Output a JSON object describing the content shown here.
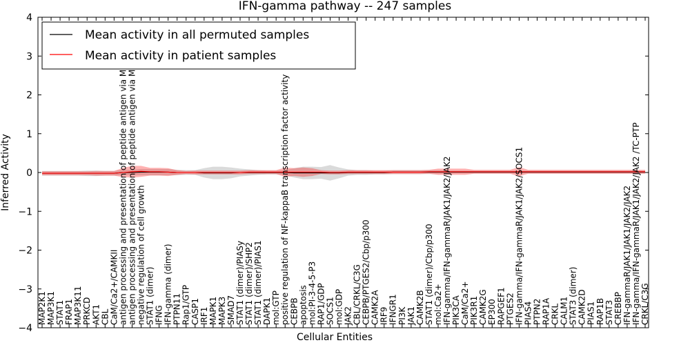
{
  "chart_data": {
    "type": "line",
    "title": "IFN-gamma pathway -- 247 samples",
    "xlabel": "Cellular Entities",
    "ylabel": "Inferred Activity",
    "ylim": [
      -4,
      4
    ],
    "yticks": [
      -4,
      -3,
      -2,
      -1,
      0,
      1,
      2,
      3,
      4
    ],
    "ytick_labels": [
      "−4",
      "−3",
      "−2",
      "−1",
      "0",
      "1",
      "2",
      "3",
      "4"
    ],
    "grid": false,
    "legend_position": "top-left",
    "categories": [
      "MAP2K1",
      "MAP3K1",
      "STAT1",
      "FRAP1",
      "MAP3K11",
      "PRKCD",
      "AKT1",
      "CBL",
      "CaM/Ca2+/CAMKII",
      "antigen processing and presentation of peptide antigen via MHC class I",
      "antigen processing and presentation of peptide antigen via MHC class II",
      "negative regulation of cell growth",
      "STAT1 (dimer)",
      "IFNG",
      "IFN-gamma (dimer)",
      "PTPN11",
      "Rap1/GTP",
      "CASP1",
      "IRF1",
      "MAPK1",
      "MAPK3",
      "SMAD7",
      "STAT1 (dimer)/PIASy",
      "STAT1 (dimer)/SHP2",
      "STAT1 (dimer)/PIAS1",
      "DAPK1",
      "mol:GTP",
      "positive regulation of NF-kappaB transcription factor activity",
      "CEBPB",
      "apoptosis",
      "mol:PI-3-4-5-P3",
      "RAP1/GDP",
      "SOCS1",
      "mol:GDP",
      "JAK2",
      "CBL/CRKL/C3G",
      "CEBPB/PTGES2/Cbp/p300",
      "CAMK2A",
      "IRF9",
      "IFNGR1",
      "PI3K",
      "JAK1",
      "CAMK2B",
      "STAT1 (dimer)/Cbp/p300",
      "mol:Ca2+",
      "IFN-gamma/IFN-gammaR/JAK1/JAK2/JAK2",
      "PIK3CA",
      "CaM/Ca2+",
      "PIK3R1",
      "CAMK2G",
      "EP300",
      "RAPGEF1",
      "PTGES2",
      "IFN-gamma/IFN-gammaR/JAK1/JAK2/SOCS1",
      "PIAS4",
      "PTPN2",
      "RAP1A",
      "CRKL",
      "CALM1",
      "STAT3 (dimer)",
      "CAMK2D",
      "PIAS1",
      "RAP1B",
      "STAT3",
      "CREBBP",
      "IFN-gammaR/JAK1/JAK1/JAK2/JAK2",
      "IFN-gamma/IFN-gammaR/JAK1/JAK2/JAK2  /TC-PTP",
      "CRKL/C3G"
    ],
    "series": [
      {
        "name": "Mean activity in all permuted samples",
        "color": "#000000",
        "values": [
          -0.02,
          -0.02,
          -0.02,
          -0.02,
          -0.02,
          -0.02,
          -0.02,
          -0.02,
          -0.02,
          0.0,
          0.0,
          0.01,
          0.01,
          0.01,
          0.01,
          0.0,
          0.0,
          0.0,
          -0.01,
          -0.01,
          -0.01,
          -0.01,
          0.0,
          0.0,
          0.0,
          0.0,
          0.0,
          0.0,
          -0.01,
          -0.01,
          -0.01,
          -0.01,
          -0.01,
          -0.01,
          0.0,
          0.0,
          0.0,
          0.0,
          0.0,
          0.01,
          0.01,
          0.01,
          0.01,
          0.01,
          0.01,
          0.01,
          0.01,
          0.01,
          0.01,
          0.01,
          0.01,
          0.01,
          0.01,
          0.01,
          0.01,
          0.01,
          0.01,
          0.01,
          0.01,
          0.01,
          0.01,
          0.01,
          0.01,
          0.01,
          0.01,
          0.01,
          0.01,
          0.01
        ],
        "band": [
          0.06,
          0.06,
          0.06,
          0.06,
          0.06,
          0.07,
          0.07,
          0.06,
          0.06,
          0.07,
          0.07,
          0.08,
          0.08,
          0.08,
          0.08,
          0.07,
          0.06,
          0.06,
          0.12,
          0.16,
          0.16,
          0.14,
          0.1,
          0.08,
          0.06,
          0.05,
          0.05,
          0.06,
          0.12,
          0.16,
          0.16,
          0.15,
          0.2,
          0.14,
          0.08,
          0.06,
          0.06,
          0.05,
          0.05,
          0.05,
          0.05,
          0.05,
          0.05,
          0.05,
          0.05,
          0.04,
          0.04,
          0.04,
          0.04,
          0.04,
          0.04,
          0.04,
          0.04,
          0.04,
          0.04,
          0.04,
          0.04,
          0.04,
          0.04,
          0.04,
          0.04,
          0.04,
          0.04,
          0.04,
          0.04,
          0.04,
          0.04,
          0.04
        ]
      },
      {
        "name": "Mean activity in patient samples",
        "color": "#ff0000",
        "values": [
          -0.02,
          -0.02,
          -0.02,
          -0.02,
          -0.02,
          -0.02,
          -0.02,
          -0.02,
          -0.02,
          0.0,
          0.02,
          0.03,
          0.02,
          0.02,
          0.01,
          0.0,
          0.0,
          0.0,
          0.0,
          0.0,
          0.0,
          0.0,
          0.0,
          0.01,
          0.01,
          0.01,
          0.01,
          0.01,
          0.01,
          0.01,
          0.01,
          0.01,
          0.0,
          0.0,
          0.01,
          0.01,
          0.01,
          0.01,
          0.01,
          0.01,
          0.01,
          0.01,
          0.01,
          0.02,
          0.02,
          0.02,
          0.02,
          0.02,
          0.02,
          0.02,
          0.02,
          0.02,
          0.02,
          0.02,
          0.02,
          0.02,
          0.02,
          0.02,
          0.02,
          0.02,
          0.02,
          0.02,
          0.02,
          0.02,
          0.02,
          0.02,
          0.02,
          0.02
        ],
        "band": [
          0.05,
          0.05,
          0.05,
          0.05,
          0.05,
          0.05,
          0.06,
          0.06,
          0.06,
          0.12,
          0.15,
          0.14,
          0.1,
          0.1,
          0.1,
          0.06,
          0.04,
          0.05,
          0.05,
          0.05,
          0.05,
          0.05,
          0.05,
          0.05,
          0.05,
          0.05,
          0.05,
          0.12,
          0.1,
          0.12,
          0.1,
          0.05,
          0.05,
          0.05,
          0.05,
          0.05,
          0.05,
          0.05,
          0.05,
          0.05,
          0.05,
          0.05,
          0.05,
          0.05,
          0.08,
          0.08,
          0.08,
          0.08,
          0.05,
          0.05,
          0.05,
          0.05,
          0.05,
          0.12,
          0.05,
          0.05,
          0.05,
          0.05,
          0.05,
          0.05,
          0.05,
          0.05,
          0.05,
          0.05,
          0.05,
          0.05,
          0.05,
          0.05
        ]
      }
    ]
  }
}
